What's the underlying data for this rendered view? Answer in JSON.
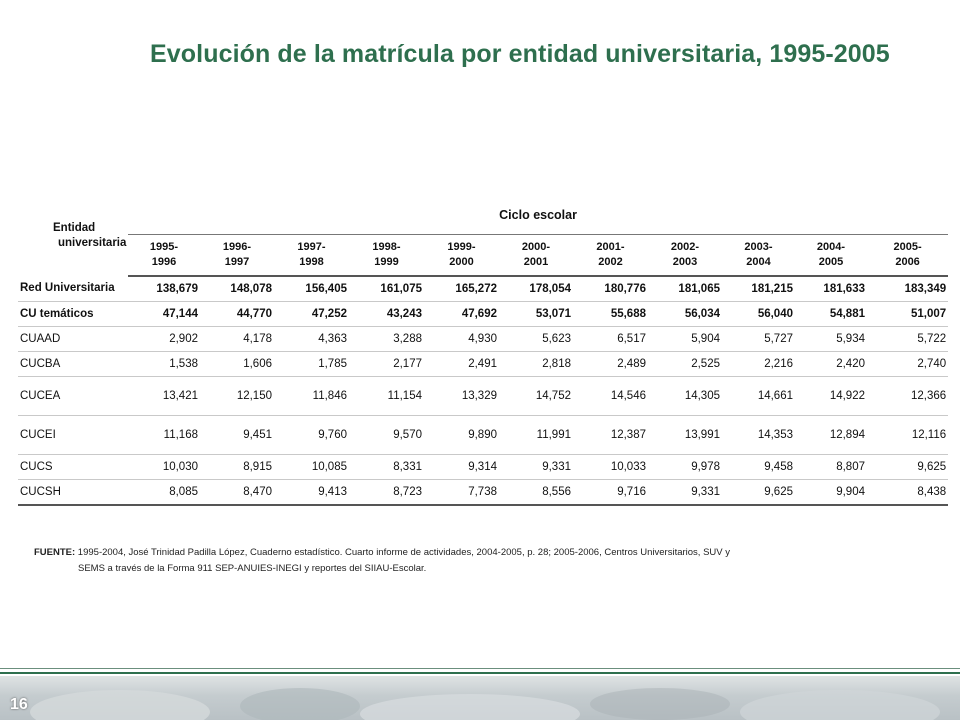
{
  "title": "Evolución de la matrícula por entidad universitaria, 1995-2005",
  "table": {
    "entity_header_line1": "Entidad",
    "entity_header_line2": "universitaria",
    "group_header": "Ciclo escolar",
    "years": [
      [
        "1995-",
        "1996"
      ],
      [
        "1996-",
        "1997"
      ],
      [
        "1997-",
        "1998"
      ],
      [
        "1998-",
        "1999"
      ],
      [
        "1999-",
        "2000"
      ],
      [
        "2000-",
        "2001"
      ],
      [
        "2001-",
        "2002"
      ],
      [
        "2002-",
        "2003"
      ],
      [
        "2003-",
        "2004"
      ],
      [
        "2004-",
        "2005"
      ],
      [
        "2005-",
        "2006"
      ]
    ],
    "rows": [
      {
        "name": "Red Universitaria",
        "values": [
          "138,679",
          "148,078",
          "156,405",
          "161,075",
          "165,272",
          "178,054",
          "180,776",
          "181,065",
          "181,215",
          "181,633",
          "183,349"
        ]
      },
      {
        "name": "CU temáticos",
        "values": [
          "47,144",
          "44,770",
          "47,252",
          "43,243",
          "47,692",
          "53,071",
          "55,688",
          "56,034",
          "56,040",
          "54,881",
          "51,007"
        ]
      },
      {
        "name": "CUAAD",
        "values": [
          "2,902",
          "4,178",
          "4,363",
          "3,288",
          "4,930",
          "5,623",
          "6,517",
          "5,904",
          "5,727",
          "5,934",
          "5,722"
        ]
      },
      {
        "name": "CUCBA",
        "values": [
          "1,538",
          "1,606",
          "1,785",
          "2,177",
          "2,491",
          "2,818",
          "2,489",
          "2,525",
          "2,216",
          "2,420",
          "2,740"
        ]
      },
      {
        "name": "CUCEA",
        "values": [
          "13,421",
          "12,150",
          "11,846",
          "11,154",
          "13,329",
          "14,752",
          "14,546",
          "14,305",
          "14,661",
          "14,922",
          "12,366"
        ]
      },
      {
        "name": "CUCEI",
        "values": [
          "11,168",
          "9,451",
          "9,760",
          "9,570",
          "9,890",
          "11,991",
          "12,387",
          "13,991",
          "14,353",
          "12,894",
          "12,116"
        ]
      },
      {
        "name": "CUCS",
        "values": [
          "10,030",
          "8,915",
          "10,085",
          "8,331",
          "9,314",
          "9,331",
          "10,033",
          "9,978",
          "9,458",
          "8,807",
          "9,625"
        ]
      },
      {
        "name": "CUCSH",
        "values": [
          "8,085",
          "8,470",
          "9,413",
          "8,723",
          "7,738",
          "8,556",
          "9,716",
          "9,331",
          "9,625",
          "9,904",
          "8,438"
        ]
      }
    ]
  },
  "source": {
    "label": "FUENTE:",
    "line1": " 1995-2004, José Trinidad Padilla López, Cuaderno estadístico. Cuarto informe de actividades, 2004-2005, p. 28; 2005-2006, Centros Universitarios, SUV y",
    "line2": "SEMS a través de la  Forma 911 SEP-ANUIES-INEGI y reportes del SIIAU-Escolar."
  },
  "page_number": "16",
  "colors": {
    "title": "#2e6f4e",
    "footer_line": "#2e6f4e"
  }
}
